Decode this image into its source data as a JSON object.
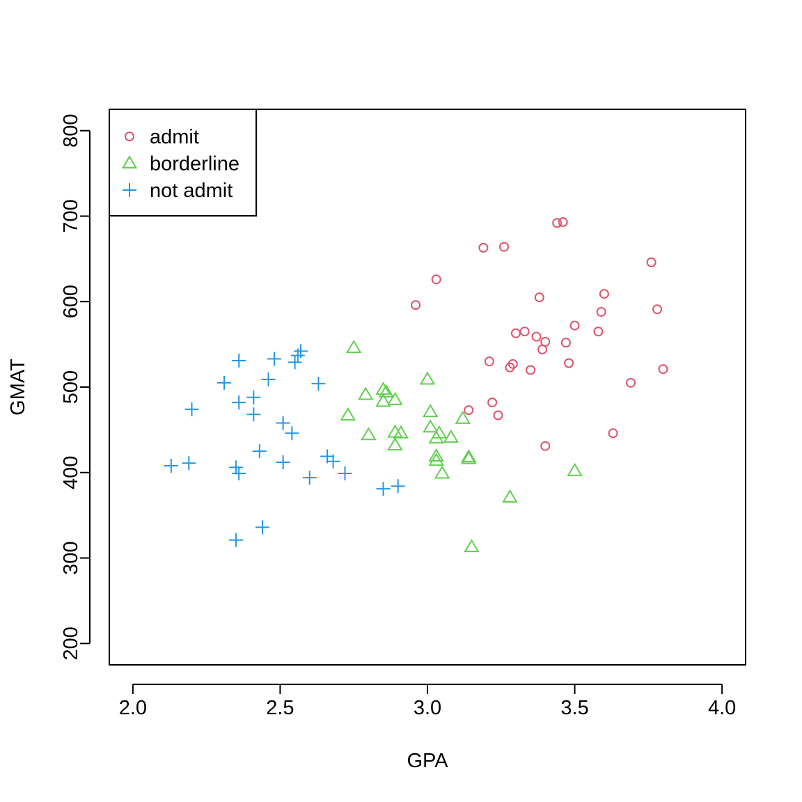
{
  "chart_data": {
    "type": "scatter",
    "xlabel": "GPA",
    "ylabel": "GMAT",
    "xlim": [
      1.92,
      4.08
    ],
    "ylim": [
      175,
      825
    ],
    "xticks": [
      2.0,
      2.5,
      3.0,
      3.5,
      4.0
    ],
    "xtick_labels": [
      "2.0",
      "2.5",
      "3.0",
      "3.5",
      "4.0"
    ],
    "yticks": [
      200,
      300,
      400,
      500,
      600,
      700,
      800
    ],
    "ytick_labels": [
      "200",
      "300",
      "400",
      "500",
      "600",
      "700",
      "800"
    ],
    "grid": false,
    "legend_position": "top-left",
    "series": [
      {
        "name": "admit",
        "marker": "circle",
        "color": "#DF536B",
        "points": [
          [
            2.96,
            596
          ],
          [
            3.03,
            626
          ],
          [
            3.14,
            473
          ],
          [
            3.19,
            663
          ],
          [
            3.21,
            530
          ],
          [
            3.22,
            482
          ],
          [
            3.24,
            467
          ],
          [
            3.26,
            664
          ],
          [
            3.28,
            523
          ],
          [
            3.29,
            527
          ],
          [
            3.3,
            563
          ],
          [
            3.33,
            565
          ],
          [
            3.35,
            520
          ],
          [
            3.37,
            559
          ],
          [
            3.38,
            605
          ],
          [
            3.39,
            544
          ],
          [
            3.4,
            553
          ],
          [
            3.4,
            431
          ],
          [
            3.44,
            692
          ],
          [
            3.46,
            693
          ],
          [
            3.47,
            552
          ],
          [
            3.48,
            528
          ],
          [
            3.5,
            572
          ],
          [
            3.58,
            565
          ],
          [
            3.59,
            588
          ],
          [
            3.6,
            609
          ],
          [
            3.63,
            446
          ],
          [
            3.69,
            505
          ],
          [
            3.76,
            646
          ],
          [
            3.78,
            591
          ],
          [
            3.8,
            521
          ]
        ]
      },
      {
        "name": "borderline",
        "marker": "triangle",
        "color": "#61D04F",
        "points": [
          [
            2.73,
            467
          ],
          [
            2.75,
            546
          ],
          [
            2.79,
            491
          ],
          [
            2.8,
            444
          ],
          [
            2.85,
            497
          ],
          [
            2.85,
            483
          ],
          [
            2.86,
            494
          ],
          [
            2.89,
            485
          ],
          [
            2.89,
            447
          ],
          [
            2.89,
            432
          ],
          [
            2.91,
            446
          ],
          [
            3.0,
            509
          ],
          [
            3.01,
            471
          ],
          [
            3.01,
            453
          ],
          [
            3.03,
            440
          ],
          [
            3.03,
            419
          ],
          [
            3.03,
            414
          ],
          [
            3.04,
            446
          ],
          [
            3.05,
            399
          ],
          [
            3.08,
            441
          ],
          [
            3.12,
            463
          ],
          [
            3.14,
            416
          ],
          [
            3.14,
            418
          ],
          [
            3.15,
            313
          ],
          [
            3.28,
            371
          ],
          [
            3.5,
            402
          ]
        ]
      },
      {
        "name": "not admit",
        "marker": "plus",
        "color": "#2297E6",
        "points": [
          [
            2.13,
            408
          ],
          [
            2.19,
            411
          ],
          [
            2.2,
            474
          ],
          [
            2.31,
            505
          ],
          [
            2.35,
            321
          ],
          [
            2.35,
            406
          ],
          [
            2.36,
            399
          ],
          [
            2.36,
            482
          ],
          [
            2.36,
            531
          ],
          [
            2.41,
            488
          ],
          [
            2.41,
            468
          ],
          [
            2.43,
            425
          ],
          [
            2.44,
            336
          ],
          [
            2.46,
            509
          ],
          [
            2.48,
            533
          ],
          [
            2.51,
            412
          ],
          [
            2.51,
            458
          ],
          [
            2.54,
            446
          ],
          [
            2.55,
            529
          ],
          [
            2.56,
            537
          ],
          [
            2.57,
            542
          ],
          [
            2.6,
            394
          ],
          [
            2.63,
            504
          ],
          [
            2.66,
            419
          ],
          [
            2.68,
            413
          ],
          [
            2.72,
            399
          ],
          [
            2.85,
            381
          ],
          [
            2.9,
            384
          ]
        ]
      }
    ]
  }
}
